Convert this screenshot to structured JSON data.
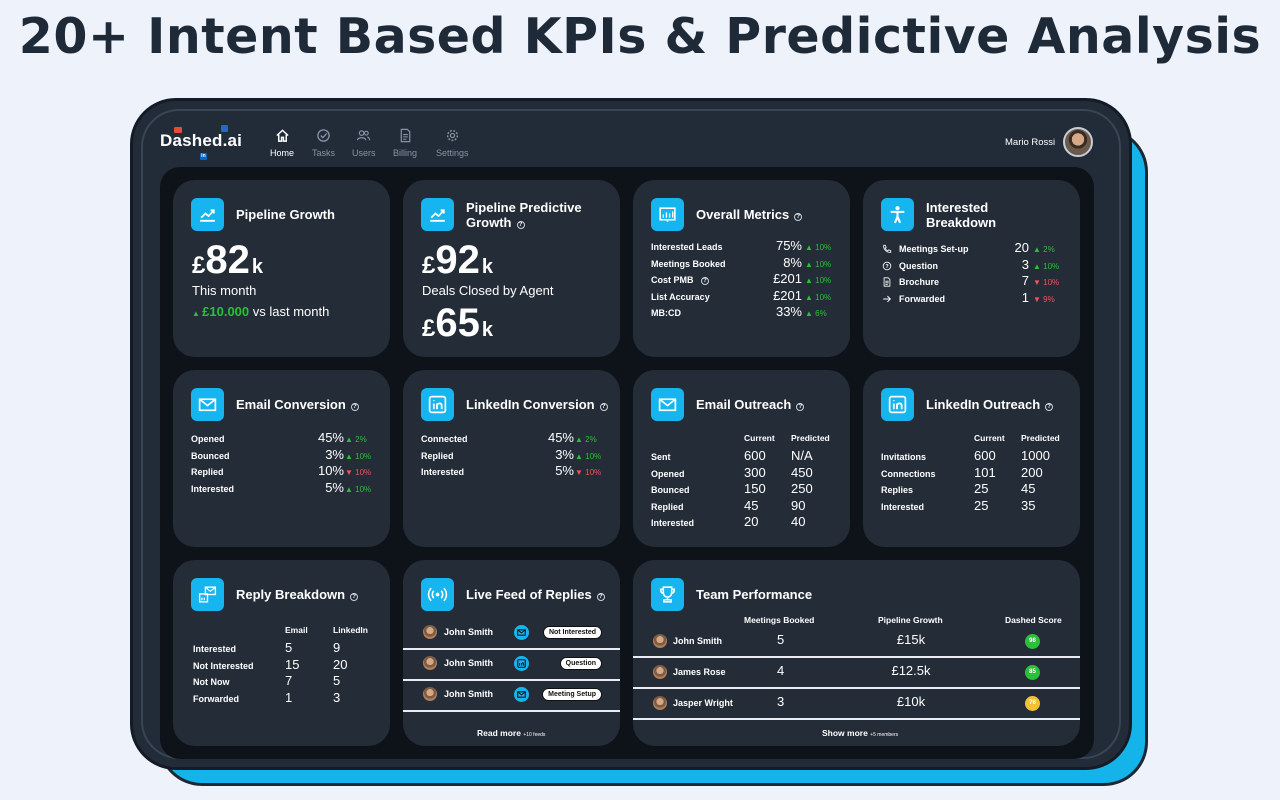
{
  "headline": "20+ Intent Based KPIs & Predictive Analysis",
  "app": {
    "logo": "Dashed.ai",
    "user_name": "Mario Rossi"
  },
  "nav": [
    {
      "label": "Home",
      "icon": "home-icon",
      "active": true
    },
    {
      "label": "Tasks",
      "icon": "check-circle-icon",
      "active": false
    },
    {
      "label": "Users",
      "icon": "users-icon",
      "active": false
    },
    {
      "label": "Billing",
      "icon": "document-icon",
      "active": false
    },
    {
      "label": "Settings",
      "icon": "gear-icon",
      "active": false
    }
  ],
  "colors": {
    "accent": "#17b5f0",
    "up": "#2cbf3a",
    "down": "#f0535a",
    "card": "#242c38",
    "screen": "#0e131a"
  },
  "pipeline_growth": {
    "title": "Pipeline Growth",
    "currency": "£",
    "value": "82",
    "unit": "k",
    "period": "This month",
    "change": "£10.000",
    "change_suffix": "vs last month"
  },
  "pipeline_predictive": {
    "title_line1": "Pipeline Predictive",
    "title_line2": "Growth",
    "currency": "£",
    "value": "92",
    "unit": "k",
    "caption": "Deals Closed by Agent",
    "value2": "65",
    "unit2": "k"
  },
  "overall_metrics": {
    "title": "Overall Metrics",
    "rows": [
      {
        "label": "Interested Leads",
        "value": "75%",
        "change": "10%",
        "dir": "up"
      },
      {
        "label": "Meetings Booked",
        "value": "8%",
        "change": "10%",
        "dir": "up"
      },
      {
        "label": "Cost PMB",
        "value": "£201",
        "change": "10%",
        "dir": "up"
      },
      {
        "label": "List Accuracy",
        "value": "£201",
        "change": "10%",
        "dir": "up"
      },
      {
        "label": "MB:CD",
        "value": "33%",
        "change": "6%",
        "dir": "up"
      }
    ]
  },
  "interested_breakdown": {
    "title_line1": "Interested",
    "title_line2": "Breakdown",
    "rows": [
      {
        "label": "Meetings Set-up",
        "icon": "phone-icon",
        "value": "20",
        "change": "2%",
        "dir": "up"
      },
      {
        "label": "Question",
        "icon": "question-icon",
        "value": "3",
        "change": "10%",
        "dir": "up"
      },
      {
        "label": "Brochure",
        "icon": "document-icon",
        "value": "7",
        "change": "10%",
        "dir": "down"
      },
      {
        "label": "Forwarded",
        "icon": "arrow-right-icon",
        "value": "1",
        "change": "9%",
        "dir": "down"
      }
    ]
  },
  "email_conversion": {
    "title": "Email Conversion",
    "rows": [
      {
        "label": "Opened",
        "value": "45%",
        "change": "2%",
        "dir": "up"
      },
      {
        "label": "Bounced",
        "value": "3%",
        "change": "10%",
        "dir": "up"
      },
      {
        "label": "Replied",
        "value": "10%",
        "change": "10%",
        "dir": "down"
      },
      {
        "label": "Interested",
        "value": "5%",
        "change": "10%",
        "dir": "up"
      }
    ]
  },
  "linkedin_conversion": {
    "title": "LinkedIn Conversion",
    "rows": [
      {
        "label": "Connected",
        "value": "45%",
        "change": "2%",
        "dir": "up"
      },
      {
        "label": "Replied",
        "value": "3%",
        "change": "10%",
        "dir": "up"
      },
      {
        "label": "Interested",
        "value": "5%",
        "change": "10%",
        "dir": "down"
      }
    ]
  },
  "email_outreach": {
    "title": "Email Outreach",
    "col1": "Current",
    "col2": "Predicted",
    "rows": [
      {
        "label": "Sent",
        "current": "600",
        "predicted": "N/A"
      },
      {
        "label": "Opened",
        "current": "300",
        "predicted": "450"
      },
      {
        "label": "Bounced",
        "current": "150",
        "predicted": "250"
      },
      {
        "label": "Replied",
        "current": "45",
        "predicted": "90"
      },
      {
        "label": "Interested",
        "current": "20",
        "predicted": "40"
      }
    ]
  },
  "linkedin_outreach": {
    "title": "LinkedIn Outreach",
    "col1": "Current",
    "col2": "Predicted",
    "rows": [
      {
        "label": "Invitations",
        "current": "600",
        "predicted": "1000"
      },
      {
        "label": "Connections",
        "current": "101",
        "predicted": "200"
      },
      {
        "label": "Replies",
        "current": "25",
        "predicted": "45"
      },
      {
        "label": "Interested",
        "current": "25",
        "predicted": "35"
      }
    ]
  },
  "reply_breakdown": {
    "title": "Reply Breakdown",
    "col1": "Email",
    "col2": "LinkedIn",
    "rows": [
      {
        "label": "Interested",
        "email": "5",
        "linkedin": "9"
      },
      {
        "label": "Not Interested",
        "email": "15",
        "linkedin": "20"
      },
      {
        "label": "Not Now",
        "email": "7",
        "linkedin": "5"
      },
      {
        "label": "Forwarded",
        "email": "1",
        "linkedin": "3"
      }
    ]
  },
  "live_feed": {
    "title": "Live Feed of Replies",
    "items": [
      {
        "name": "John Smith",
        "channel": "email-icon",
        "status": "Not Interested"
      },
      {
        "name": "John Smith",
        "channel": "linkedin-icon",
        "status": "Question"
      },
      {
        "name": "John Smith",
        "channel": "email-icon",
        "status": "Meeting Setup"
      }
    ],
    "read_more": "Read more",
    "read_more_note": "+10 feeds"
  },
  "team_performance": {
    "title": "Team Performance",
    "col1": "Meetings Booked",
    "col2": "Pipeline Growth",
    "col3": "Dashed Score",
    "rows": [
      {
        "name": "John Smith",
        "meetings": "5",
        "growth": "£15k",
        "score": "98",
        "score_color": "#2cbf3a"
      },
      {
        "name": "James Rose",
        "meetings": "4",
        "growth": "£12.5k",
        "score": "85",
        "score_color": "#2cbf3a"
      },
      {
        "name": "Jasper Wright",
        "meetings": "3",
        "growth": "£10k",
        "score": "76",
        "score_color": "#f2c230"
      }
    ],
    "show_more": "Show more",
    "show_more_note": "+5 members"
  }
}
